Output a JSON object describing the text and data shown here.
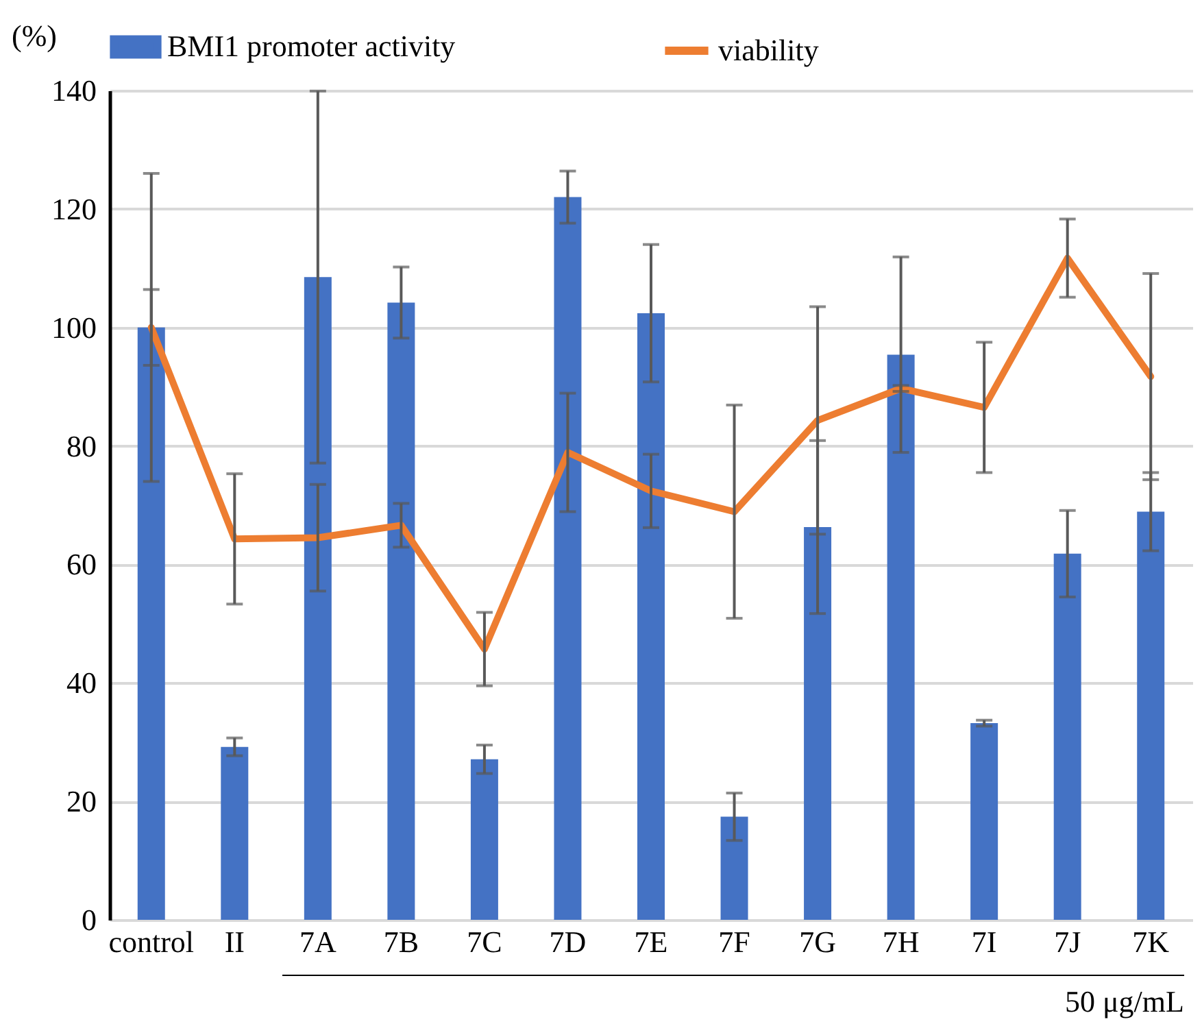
{
  "chart_data": {
    "type": "bar",
    "ylabel": "(%)",
    "categories": [
      "control",
      "II",
      "7A",
      "7B",
      "7C",
      "7D",
      "7E",
      "7F",
      "7G",
      "7H",
      "7I",
      "7J",
      "7K"
    ],
    "series": [
      {
        "name": "BMI1 promoter activity",
        "color": "#4472c4",
        "values": [
          100,
          29.2,
          108.5,
          104.2,
          27.1,
          122,
          102.4,
          17.4,
          66.3,
          95.4,
          33.2,
          61.8,
          68.9
        ],
        "errors": [
          26,
          1.5,
          31.4,
          6,
          2.4,
          4.4,
          11.6,
          4,
          14.6,
          16.5,
          0.5,
          7.3,
          6.6
        ]
      },
      {
        "name": "viability",
        "type": "line",
        "color": "#ed7d31",
        "values": [
          100,
          64.3,
          64.5,
          66.6,
          45.7,
          78.9,
          72.4,
          68.9,
          84.3,
          89.7,
          86.5,
          111.7,
          91.7
        ],
        "errors": [
          6.4,
          11,
          9,
          3.7,
          6.2,
          10,
          6.2,
          18,
          19.2,
          0.5,
          11,
          6.6,
          17.4
        ]
      }
    ],
    "ylim": [
      0,
      140
    ],
    "yticks": [
      0,
      20,
      40,
      60,
      80,
      100,
      120,
      140
    ],
    "grid": "y",
    "legend": "top",
    "annotations": [
      "50 μg/mL"
    ]
  }
}
